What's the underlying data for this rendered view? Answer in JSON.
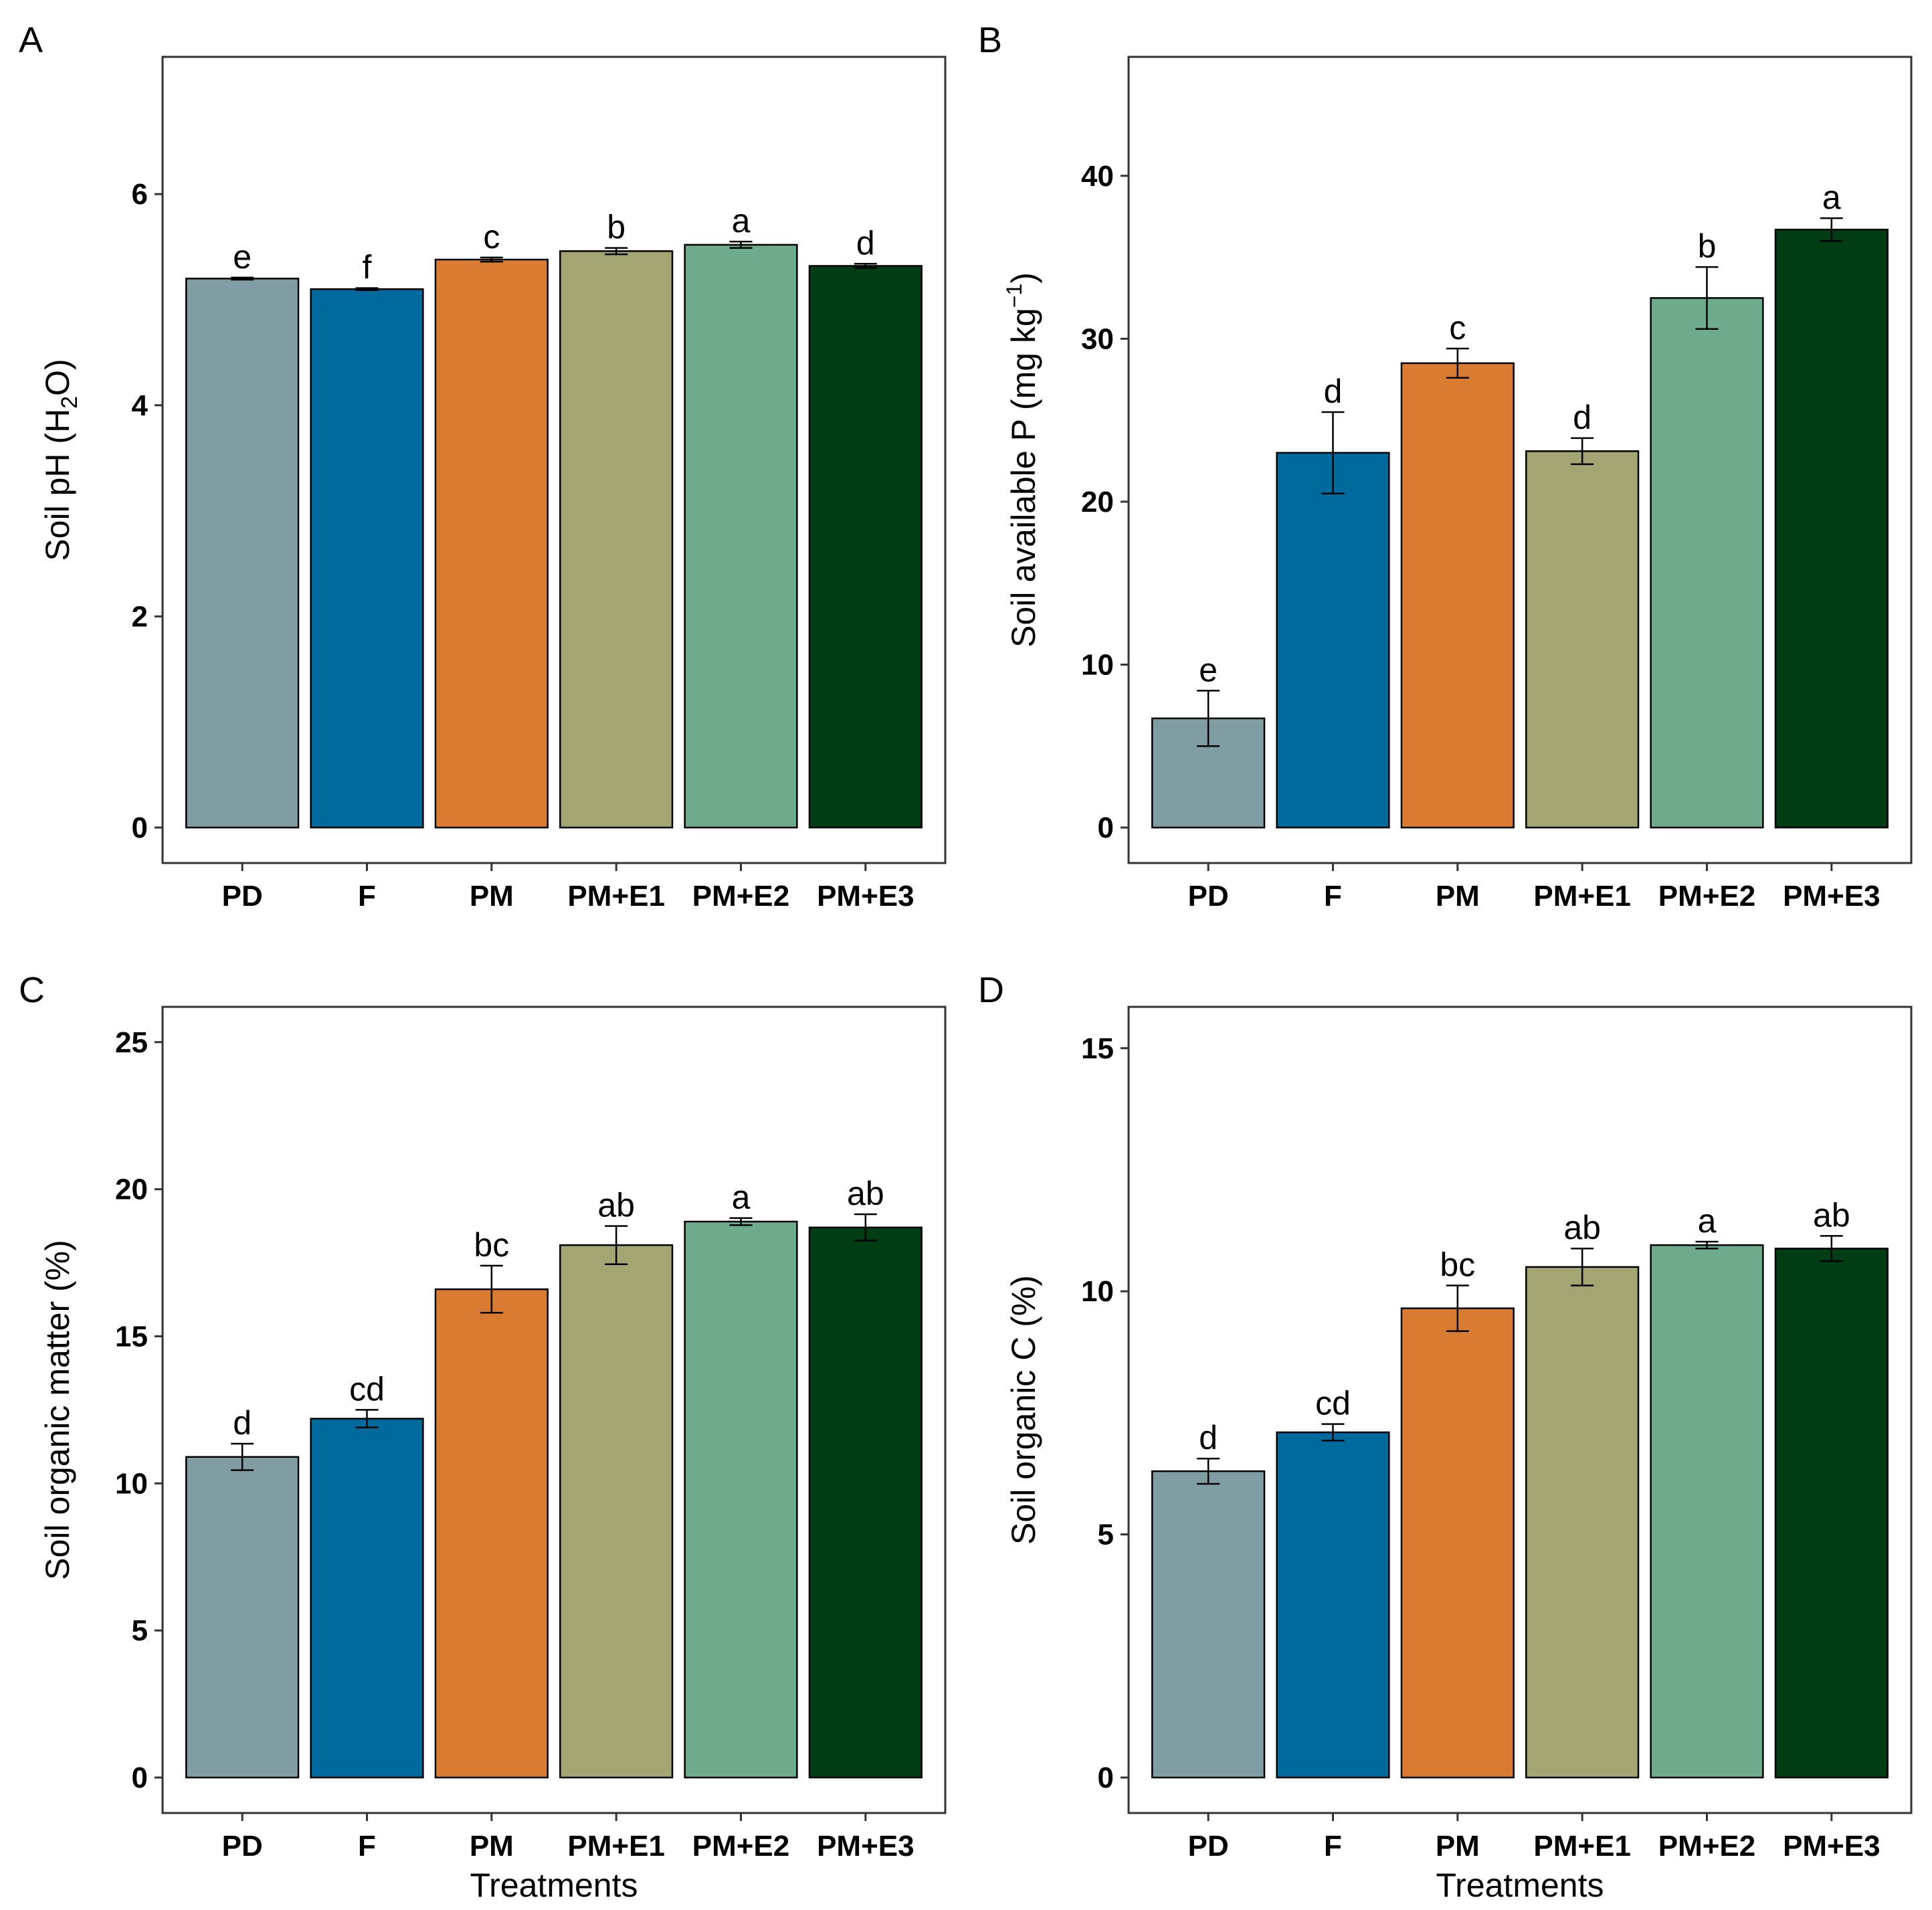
{
  "colors": {
    "PD": "#809da4",
    "F": "#006a9c",
    "PM": "#d97c31",
    "PM+E1": "#a3a573",
    "PM+E2": "#6dab8c",
    "PM+E3": "#003d14"
  },
  "chart_data": [
    {
      "panel": "A",
      "type": "bar",
      "ylabel": "Soil pH (H2O)",
      "ylabel_parts": {
        "main": "Soil pH (H",
        "sub": "2",
        "tail": "O)"
      },
      "xlabel": "",
      "categories": [
        "PD",
        "F",
        "PM",
        "PM+E1",
        "PM+E2",
        "PM+E3"
      ],
      "values": [
        5.2,
        5.1,
        5.38,
        5.46,
        5.52,
        5.32
      ],
      "errors": [
        0.01,
        0.01,
        0.02,
        0.03,
        0.03,
        0.02
      ],
      "letters": [
        "e",
        "f",
        "c",
        "b",
        "a",
        "d"
      ],
      "ylim": [
        0,
        7.3
      ],
      "yticks": [
        0,
        2,
        4,
        6
      ],
      "ytick_labels": [
        "0",
        "2",
        "4",
        "6"
      ]
    },
    {
      "panel": "B",
      "type": "bar",
      "ylabel": "Soil available P (mg kg−1)",
      "ylabel_parts": {
        "main": "Soil available P (mg kg",
        "sup": "−1",
        "tail": ")"
      },
      "xlabel": "",
      "categories": [
        "PD",
        "F",
        "PM",
        "PM+E1",
        "PM+E2",
        "PM+E3"
      ],
      "values": [
        6.7,
        23.0,
        28.5,
        23.1,
        32.5,
        36.7
      ],
      "errors": [
        1.7,
        2.5,
        0.9,
        0.8,
        1.9,
        0.7
      ],
      "letters": [
        "e",
        "d",
        "c",
        "d",
        "b",
        "a"
      ],
      "ylim": [
        0,
        47.3
      ],
      "yticks": [
        0,
        10,
        20,
        30,
        40
      ],
      "ytick_labels": [
        "0",
        "10",
        "20",
        "30",
        "40"
      ]
    },
    {
      "panel": "C",
      "type": "bar",
      "ylabel": "Soil organic matter (%)",
      "xlabel": "Treatments",
      "categories": [
        "PD",
        "F",
        "PM",
        "PM+E1",
        "PM+E2",
        "PM+E3"
      ],
      "values": [
        10.9,
        12.2,
        16.6,
        18.1,
        18.9,
        18.7
      ],
      "errors": [
        0.45,
        0.3,
        0.8,
        0.65,
        0.12,
        0.45
      ],
      "letters": [
        "d",
        "cd",
        "bc",
        "ab",
        "a",
        "ab"
      ],
      "ylim": [
        0,
        26.2
      ],
      "yticks": [
        0,
        5,
        10,
        15,
        20,
        25
      ],
      "ytick_labels": [
        "0",
        "5",
        "10",
        "15",
        "20",
        "25"
      ]
    },
    {
      "panel": "D",
      "type": "bar",
      "ylabel": "Soil organic C (%)",
      "xlabel": "Treatments",
      "categories": [
        "PD",
        "F",
        "PM",
        "PM+E1",
        "PM+E2",
        "PM+E3"
      ],
      "values": [
        6.3,
        7.1,
        9.65,
        10.5,
        10.95,
        10.88
      ],
      "errors": [
        0.26,
        0.17,
        0.47,
        0.38,
        0.07,
        0.26
      ],
      "letters": [
        "d",
        "cd",
        "bc",
        "ab",
        "a",
        "ab"
      ],
      "ylim": [
        0,
        15.85
      ],
      "yticks": [
        0,
        5,
        10,
        15
      ],
      "ytick_labels": [
        "0",
        "5",
        "10",
        "15"
      ]
    }
  ]
}
